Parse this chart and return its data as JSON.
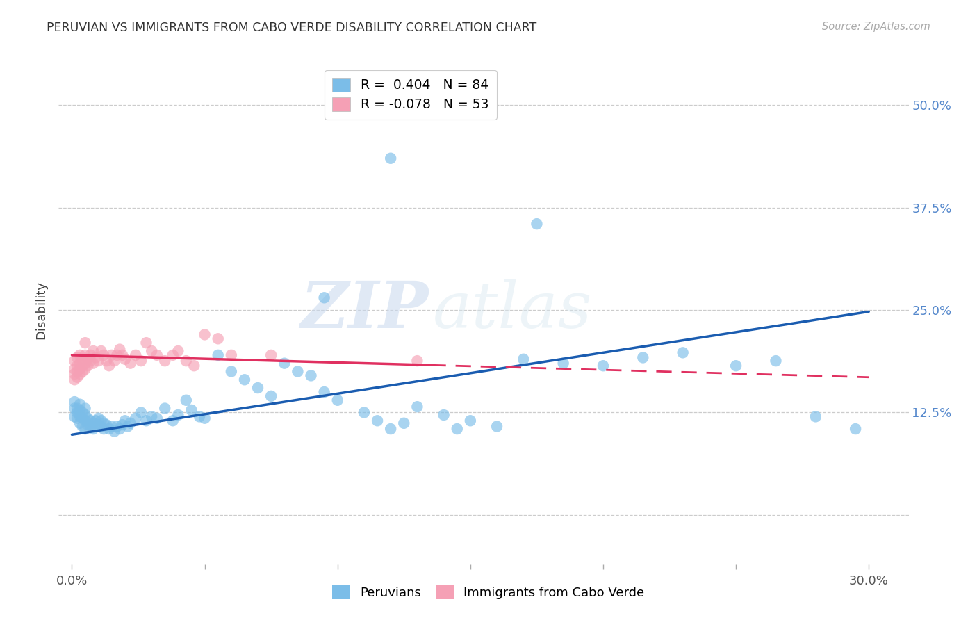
{
  "title": "PERUVIAN VS IMMIGRANTS FROM CABO VERDE DISABILITY CORRELATION CHART",
  "source": "Source: ZipAtlas.com",
  "ylabel_label": "Disability",
  "xlim": [
    -0.005,
    0.315
  ],
  "ylim": [
    -0.06,
    0.56
  ],
  "legend_blue_r": "R =  0.404",
  "legend_blue_n": "N = 84",
  "legend_pink_r": "R = -0.078",
  "legend_pink_n": "N = 53",
  "legend_blue_label": "Peruvians",
  "legend_pink_label": "Immigrants from Cabo Verde",
  "blue_color": "#7bbde8",
  "pink_color": "#f5a0b5",
  "blue_line_color": "#1a5cb0",
  "pink_line_color": "#e03060",
  "watermark_zip": "ZIP",
  "watermark_atlas": "atlas",
  "blue_line_x0": 0.0,
  "blue_line_x1": 0.3,
  "blue_line_y0": 0.098,
  "blue_line_y1": 0.248,
  "pink_line_x0": 0.0,
  "pink_line_x1": 0.3,
  "pink_line_y0": 0.195,
  "pink_line_y1": 0.168,
  "grid_color": "#cccccc",
  "bg_color": "#ffffff",
  "blue_scatter_x": [
    0.001,
    0.001,
    0.001,
    0.002,
    0.002,
    0.002,
    0.003,
    0.003,
    0.003,
    0.003,
    0.004,
    0.004,
    0.004,
    0.005,
    0.005,
    0.005,
    0.005,
    0.006,
    0.006,
    0.007,
    0.007,
    0.008,
    0.008,
    0.009,
    0.009,
    0.01,
    0.01,
    0.011,
    0.011,
    0.012,
    0.012,
    0.013,
    0.014,
    0.015,
    0.016,
    0.017,
    0.018,
    0.019,
    0.02,
    0.021,
    0.022,
    0.024,
    0.026,
    0.028,
    0.03,
    0.032,
    0.035,
    0.038,
    0.04,
    0.043,
    0.045,
    0.048,
    0.05,
    0.055,
    0.06,
    0.065,
    0.07,
    0.075,
    0.08,
    0.085,
    0.09,
    0.095,
    0.1,
    0.11,
    0.115,
    0.12,
    0.125,
    0.13,
    0.14,
    0.15,
    0.16,
    0.17,
    0.185,
    0.2,
    0.215,
    0.23,
    0.25,
    0.265,
    0.28,
    0.295,
    0.12,
    0.145,
    0.095,
    0.175
  ],
  "blue_scatter_y": [
    0.13,
    0.138,
    0.12,
    0.125,
    0.13,
    0.118,
    0.128,
    0.12,
    0.135,
    0.112,
    0.118,
    0.125,
    0.108,
    0.115,
    0.122,
    0.105,
    0.13,
    0.11,
    0.118,
    0.108,
    0.115,
    0.112,
    0.105,
    0.108,
    0.115,
    0.11,
    0.118,
    0.108,
    0.115,
    0.105,
    0.112,
    0.11,
    0.105,
    0.108,
    0.102,
    0.108,
    0.105,
    0.11,
    0.115,
    0.108,
    0.112,
    0.118,
    0.125,
    0.115,
    0.12,
    0.118,
    0.13,
    0.115,
    0.122,
    0.14,
    0.128,
    0.12,
    0.118,
    0.195,
    0.175,
    0.165,
    0.155,
    0.145,
    0.185,
    0.175,
    0.17,
    0.15,
    0.14,
    0.125,
    0.115,
    0.105,
    0.112,
    0.132,
    0.122,
    0.115,
    0.108,
    0.19,
    0.185,
    0.182,
    0.192,
    0.198,
    0.182,
    0.188,
    0.12,
    0.105,
    0.435,
    0.105,
    0.265,
    0.355
  ],
  "pink_scatter_x": [
    0.001,
    0.001,
    0.001,
    0.001,
    0.002,
    0.002,
    0.002,
    0.002,
    0.003,
    0.003,
    0.003,
    0.003,
    0.004,
    0.004,
    0.004,
    0.005,
    0.005,
    0.005,
    0.005,
    0.006,
    0.006,
    0.007,
    0.007,
    0.008,
    0.008,
    0.009,
    0.01,
    0.011,
    0.012,
    0.013,
    0.014,
    0.015,
    0.016,
    0.017,
    0.018,
    0.019,
    0.02,
    0.022,
    0.024,
    0.026,
    0.028,
    0.03,
    0.032,
    0.035,
    0.038,
    0.04,
    0.043,
    0.046,
    0.05,
    0.055,
    0.06,
    0.075,
    0.13
  ],
  "pink_scatter_y": [
    0.165,
    0.172,
    0.178,
    0.188,
    0.168,
    0.175,
    0.182,
    0.192,
    0.172,
    0.178,
    0.185,
    0.195,
    0.175,
    0.182,
    0.19,
    0.178,
    0.185,
    0.195,
    0.21,
    0.182,
    0.19,
    0.188,
    0.195,
    0.185,
    0.2,
    0.192,
    0.188,
    0.2,
    0.195,
    0.188,
    0.182,
    0.195,
    0.188,
    0.195,
    0.202,
    0.195,
    0.19,
    0.185,
    0.195,
    0.188,
    0.21,
    0.2,
    0.195,
    0.188,
    0.195,
    0.2,
    0.188,
    0.182,
    0.22,
    0.215,
    0.195,
    0.195,
    0.188
  ]
}
